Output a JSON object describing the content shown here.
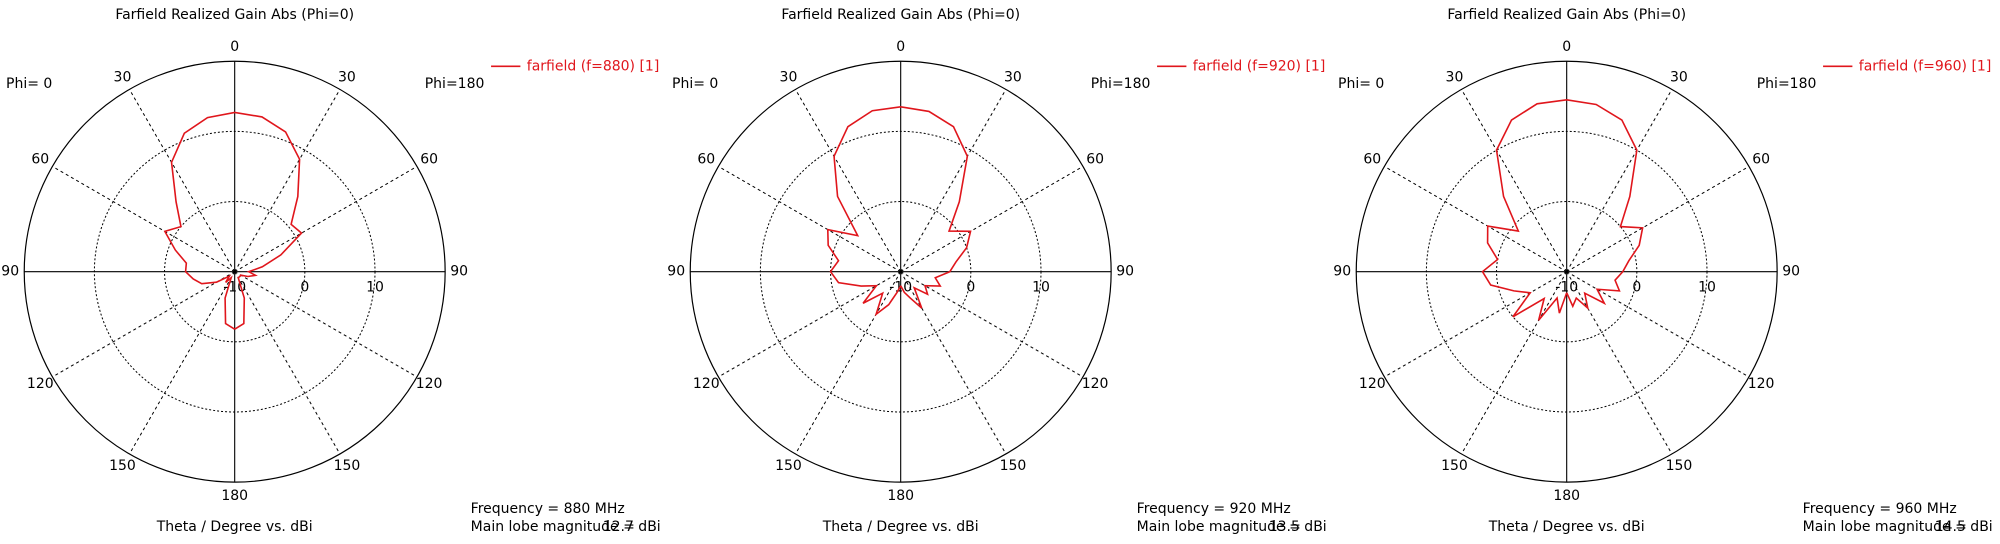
{
  "chart_data": [
    {
      "type": "polar",
      "title": "Farfield Realized Gain Abs (Phi=0)",
      "left_label": "Phi= 0",
      "right_label": "Phi=180",
      "xlabel": "Theta / Degree vs. dBi",
      "annotations": [
        "Frequency = 880 MHz",
        "Main lobe magnitude =",
        "12.7 dBi"
      ],
      "x": [
        -180,
        -170,
        -160,
        -150,
        -140,
        -130,
        -120,
        -110,
        -100,
        -90,
        -80,
        -70,
        -60,
        -50,
        -40,
        -30,
        -20,
        -10,
        0,
        10,
        20,
        30,
        40,
        50,
        60,
        70,
        80,
        90,
        100,
        110,
        120,
        130,
        140,
        150,
        160,
        170,
        180
      ],
      "series": [
        {
          "name": "farfield (f=880) [1]",
          "color": "#e0161c",
          "values": [
            -1.8,
            -2.5,
            -6,
            -9,
            -8,
            -9,
            -7,
            -5,
            -4,
            -3,
            -3,
            -1,
            1.5,
            0,
            3,
            8,
            11,
            12.3,
            12.7,
            12.4,
            11.2,
            8.5,
            4,
            0.5,
            1,
            -3,
            -6,
            -8,
            -7,
            -8,
            -9,
            -9,
            -9,
            -9,
            -6,
            -2.5,
            -1.8
          ]
        }
      ],
      "rlim": [
        -10,
        20
      ],
      "rticks": [
        -10,
        0,
        10
      ],
      "xticks": [
        {
          "value": -150,
          "label": "150"
        },
        {
          "value": -120,
          "label": "120"
        },
        {
          "value": -90,
          "label": "90"
        },
        {
          "value": -60,
          "label": "60"
        },
        {
          "value": -30,
          "label": "30"
        },
        0,
        30,
        60,
        90,
        120,
        150,
        180
      ]
    },
    {
      "type": "polar",
      "title": "Farfield Realized Gain Abs (Phi=0)",
      "left_label": "Phi= 0",
      "right_label": "Phi=180",
      "xlabel": "Theta / Degree vs. dBi",
      "annotations": [
        "Frequency = 920 MHz",
        "Main lobe magnitude =",
        "13.5 dBi"
      ],
      "x": [
        -180,
        -170,
        -160,
        -150,
        -140,
        -130,
        -120,
        -110,
        -100,
        -90,
        -80,
        -70,
        -60,
        -50,
        -40,
        -30,
        -20,
        -10,
        0,
        10,
        20,
        30,
        40,
        50,
        60,
        70,
        80,
        90,
        100,
        110,
        120,
        130,
        140,
        150,
        160,
        170,
        180
      ],
      "series": [
        {
          "name": "farfield (f=920) [1]",
          "color": "#e0161c",
          "values": [
            -8,
            -7,
            -5,
            -3,
            -6,
            -3,
            -6,
            -4,
            -1,
            0,
            -1,
            1,
            2,
            -2,
            4,
            9,
            12,
            13.3,
            13.5,
            13.2,
            12,
            9,
            3,
            -1,
            1.5,
            0,
            -2,
            -3,
            -5,
            -4,
            -6,
            -5,
            -7,
            -4,
            -6,
            -7,
            -8
          ]
        }
      ],
      "rlim": [
        -10,
        20
      ],
      "rticks": [
        -10,
        0,
        10
      ],
      "xticks": [
        {
          "value": -150,
          "label": "150"
        },
        {
          "value": -120,
          "label": "120"
        },
        {
          "value": -90,
          "label": "90"
        },
        {
          "value": -60,
          "label": "60"
        },
        {
          "value": -30,
          "label": "30"
        },
        0,
        30,
        60,
        90,
        120,
        150,
        180
      ]
    },
    {
      "type": "polar",
      "title": "Farfield Realized Gain Abs (Phi=0)",
      "left_label": "Phi= 0",
      "right_label": "Phi=180",
      "xlabel": "Theta / Degree vs. dBi",
      "annotations": [
        "Frequency = 960 MHz",
        "Main lobe magnitude =",
        "14.5 dBi"
      ],
      "x": [
        -180,
        -170,
        -160,
        -150,
        -140,
        -130,
        -120,
        -110,
        -100,
        -90,
        -80,
        -70,
        -60,
        -50,
        -40,
        -30,
        -20,
        -10,
        0,
        10,
        20,
        30,
        40,
        50,
        60,
        70,
        80,
        90,
        100,
        110,
        120,
        130,
        140,
        150,
        160,
        170,
        180
      ],
      "series": [
        {
          "name": "farfield (f=960) [1]",
          "color": "#e0161c",
          "values": [
            -7,
            -4,
            -6,
            -2,
            -5,
            0,
            -4,
            -2,
            1,
            2,
            0,
            2,
            3,
            -1,
            4,
            10,
            13,
            14.3,
            14.5,
            14.2,
            13,
            10,
            4,
            0,
            2.5,
            1,
            -1,
            -2,
            -3,
            -2,
            -5,
            -3,
            -6,
            -4,
            -6,
            -5,
            -7
          ]
        }
      ],
      "rlim": [
        -10,
        20
      ],
      "rticks": [
        -10,
        0,
        10
      ],
      "xticks": [
        {
          "value": -150,
          "label": "150"
        },
        {
          "value": -120,
          "label": "120"
        },
        {
          "value": -90,
          "label": "90"
        },
        {
          "value": -60,
          "label": "60"
        },
        {
          "value": -30,
          "label": "30"
        },
        0,
        30,
        60,
        90,
        120,
        150,
        180
      ]
    }
  ]
}
